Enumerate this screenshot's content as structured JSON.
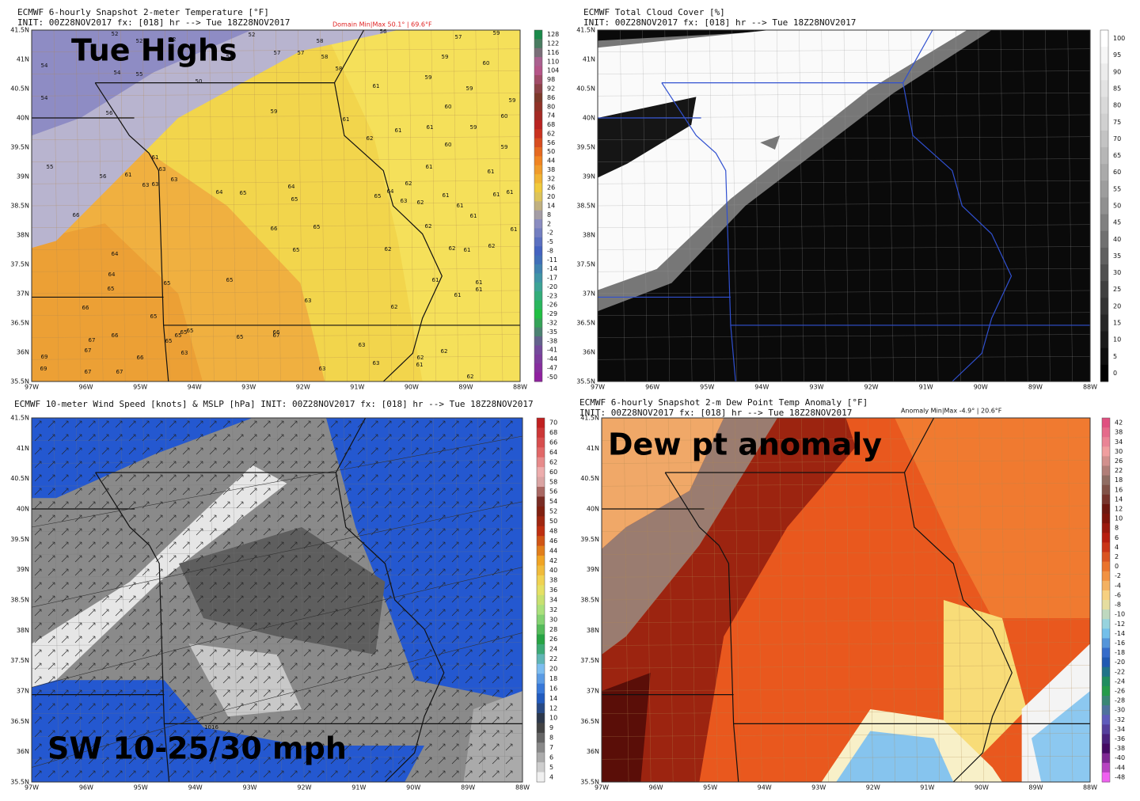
{
  "axes": {
    "lat_labels": [
      "41.5N",
      "41N",
      "40.5N",
      "40N",
      "39.5N",
      "39N",
      "38.5N",
      "38N",
      "37.5N",
      "37N",
      "36.5N",
      "36N",
      "35.5N"
    ],
    "lon_labels": [
      "97W",
      "96W",
      "95W",
      "94W",
      "93W",
      "92W",
      "91W",
      "90W",
      "89W",
      "88W"
    ]
  },
  "panels": [
    {
      "title": "ECMWF 6-hourly Snapshot 2-meter Temperature [°F]",
      "subtitle": "INIT: 00Z28NOV2017 fx: [018] hr --> Tue 18Z28NOV2017",
      "annotation": "Domain Min|Max 50.1° | 69.6°F",
      "overlay": "Tue Highs",
      "colorbar": [
        128,
        122,
        116,
        110,
        104,
        98,
        92,
        86,
        80,
        74,
        68,
        62,
        56,
        50,
        44,
        38,
        32,
        26,
        20,
        14,
        8,
        2,
        -2,
        -5,
        -8,
        -11,
        -14,
        -17,
        -20,
        -23,
        -26,
        -29,
        -32,
        -35,
        -38,
        -41,
        -44,
        -47,
        -50
      ],
      "station_values": [
        52,
        52,
        52,
        52,
        58,
        56,
        57,
        59,
        54,
        54,
        55,
        51,
        57,
        57,
        58,
        58,
        59,
        60,
        54,
        56,
        50,
        61,
        59,
        59,
        59,
        59,
        61,
        60,
        59,
        60,
        62,
        61,
        61,
        60,
        59,
        55,
        56,
        61,
        61,
        63,
        63,
        63,
        63,
        64,
        65,
        64,
        65,
        65,
        64,
        62,
        61,
        61,
        66,
        66,
        65,
        63,
        62,
        61,
        61,
        61,
        61,
        61,
        64,
        64,
        65,
        65,
        65,
        65,
        62,
        62,
        62,
        61,
        62,
        61,
        66,
        65,
        63,
        62,
        61,
        61,
        61,
        61,
        67,
        66,
        67,
        65,
        65,
        65,
        65,
        63,
        65,
        66,
        67,
        63,
        69,
        69,
        67,
        67,
        66,
        63,
        63,
        62,
        61,
        62,
        62
      ]
    },
    {
      "title": "ECMWF Total Cloud Cover [%]",
      "subtitle": "INIT: 00Z28NOV2017 fx: [018] hr --> Tue 18Z28NOV2017",
      "colorbar": [
        100,
        95,
        90,
        85,
        80,
        75,
        70,
        65,
        60,
        55,
        50,
        45,
        40,
        35,
        30,
        25,
        20,
        15,
        10,
        5,
        0
      ]
    },
    {
      "title": "ECMWF 10-meter Wind Speed [knots] & MSLP [hPa] INIT: 00Z28NOV2017 fx: [018] hr --> Tue 18Z28NOV2017",
      "overlay": "SW 10-25/30 mph",
      "isobar_label": 1016,
      "colorbar": [
        70,
        68,
        66,
        64,
        62,
        60,
        58,
        56,
        54,
        52,
        50,
        48,
        46,
        44,
        42,
        40,
        38,
        36,
        34,
        32,
        30,
        28,
        26,
        24,
        22,
        20,
        18,
        16,
        14,
        12,
        10,
        9,
        8,
        7,
        6,
        5,
        4
      ]
    },
    {
      "title": "ECMWF 6-hourly Snapshot 2-m Dew Point Temp Anomaly [°F]",
      "subtitle": "INIT: 00Z28NOV2017 fx: [018] hr --> Tue 18Z28NOV2017",
      "annotation": "Anomaly Min|Max -4.9° | 20.6°F",
      "overlay": "Dew pt anomaly",
      "colorbar": [
        42,
        38,
        34,
        30,
        26,
        22,
        18,
        16,
        14,
        12,
        10,
        8,
        6,
        4,
        2,
        0,
        -2,
        -4,
        -6,
        -8,
        -10,
        -12,
        -14,
        -16,
        -18,
        -20,
        -22,
        -24,
        -26,
        -28,
        -30,
        -32,
        -34,
        -36,
        -38,
        -40,
        -44,
        -48
      ]
    }
  ]
}
